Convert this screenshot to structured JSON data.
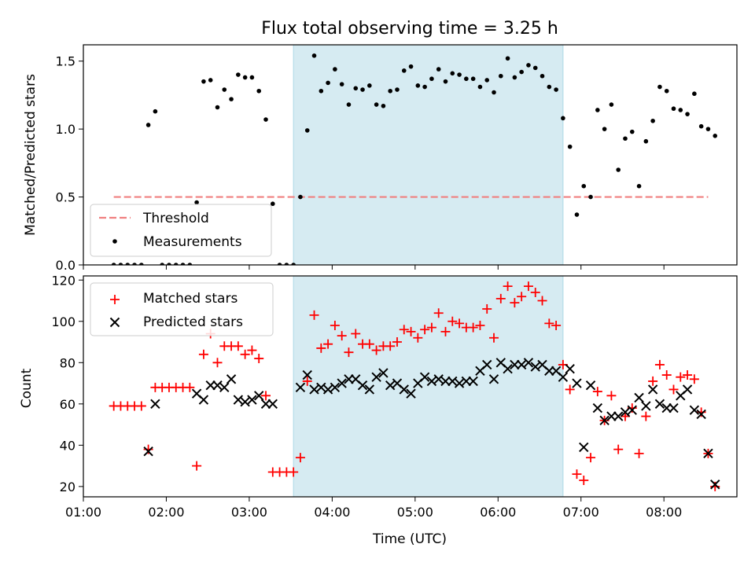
{
  "title": "Flux total observing time = 3.25 h",
  "x_axis": {
    "label": "Time (UTC)",
    "ticks": [
      "01:00",
      "02:00",
      "03:00",
      "04:00",
      "05:00",
      "06:00",
      "07:00",
      "08:00"
    ],
    "range_hours": [
      1.0,
      8.88
    ]
  },
  "colors": {
    "shade": "#add8e6",
    "threshold": "#f08080",
    "measurements": "#000000",
    "matched": "#ff0000",
    "predicted": "#000000"
  },
  "chart_data": [
    {
      "type": "scatter",
      "panel": "top",
      "ylabel": "Matched/Predicted stars",
      "ylim": [
        0,
        1.62
      ],
      "yticks": [
        "0.0",
        "0.5",
        "1.0",
        "1.5"
      ],
      "shaded_span": [
        "03:32",
        "06:47"
      ],
      "legend": {
        "placement": "lower-left",
        "entries": [
          "Threshold",
          "Measurements"
        ]
      },
      "threshold": {
        "name": "Threshold",
        "value": 0.5,
        "x": [
          "01:22",
          "08:32"
        ]
      },
      "series": [
        {
          "name": "Measurements",
          "points": [
            [
              "01:22",
              0.0
            ],
            [
              "01:27",
              0.0
            ],
            [
              "01:32",
              0.0
            ],
            [
              "01:37",
              0.0
            ],
            [
              "01:42",
              0.0
            ],
            [
              "01:47",
              1.03
            ],
            [
              "01:52",
              1.13
            ],
            [
              "01:57",
              0.0
            ],
            [
              "02:02",
              0.0
            ],
            [
              "02:07",
              0.0
            ],
            [
              "02:12",
              0.0
            ],
            [
              "02:17",
              0.0
            ],
            [
              "02:22",
              0.46
            ],
            [
              "02:27",
              1.35
            ],
            [
              "02:32",
              1.36
            ],
            [
              "02:37",
              1.16
            ],
            [
              "02:42",
              1.29
            ],
            [
              "02:47",
              1.22
            ],
            [
              "02:52",
              1.4
            ],
            [
              "02:57",
              1.38
            ],
            [
              "03:02",
              1.38
            ],
            [
              "03:07",
              1.28
            ],
            [
              "03:12",
              1.07
            ],
            [
              "03:17",
              0.45
            ],
            [
              "03:22",
              0.0
            ],
            [
              "03:27",
              0.0
            ],
            [
              "03:32",
              0.0
            ],
            [
              "03:37",
              0.5
            ],
            [
              "03:42",
              0.99
            ],
            [
              "03:47",
              1.54
            ],
            [
              "03:52",
              1.28
            ],
            [
              "03:57",
              1.34
            ],
            [
              "04:02",
              1.44
            ],
            [
              "04:07",
              1.33
            ],
            [
              "04:12",
              1.18
            ],
            [
              "04:17",
              1.3
            ],
            [
              "04:22",
              1.29
            ],
            [
              "04:27",
              1.32
            ],
            [
              "04:32",
              1.18
            ],
            [
              "04:37",
              1.17
            ],
            [
              "04:42",
              1.28
            ],
            [
              "04:47",
              1.29
            ],
            [
              "04:52",
              1.43
            ],
            [
              "04:57",
              1.46
            ],
            [
              "05:02",
              1.32
            ],
            [
              "05:07",
              1.31
            ],
            [
              "05:12",
              1.37
            ],
            [
              "05:17",
              1.44
            ],
            [
              "05:22",
              1.35
            ],
            [
              "05:27",
              1.41
            ],
            [
              "05:32",
              1.4
            ],
            [
              "05:37",
              1.37
            ],
            [
              "05:42",
              1.37
            ],
            [
              "05:47",
              1.31
            ],
            [
              "05:52",
              1.36
            ],
            [
              "05:57",
              1.27
            ],
            [
              "06:02",
              1.39
            ],
            [
              "06:07",
              1.52
            ],
            [
              "06:12",
              1.38
            ],
            [
              "06:17",
              1.42
            ],
            [
              "06:22",
              1.47
            ],
            [
              "06:27",
              1.45
            ],
            [
              "06:32",
              1.39
            ],
            [
              "06:37",
              1.31
            ],
            [
              "06:42",
              1.29
            ],
            [
              "06:47",
              1.08
            ],
            [
              "06:52",
              0.87
            ],
            [
              "06:57",
              0.37
            ],
            [
              "07:02",
              0.58
            ],
            [
              "07:07",
              0.5
            ],
            [
              "07:12",
              1.14
            ],
            [
              "07:17",
              1.0
            ],
            [
              "07:22",
              1.18
            ],
            [
              "07:27",
              0.7
            ],
            [
              "07:32",
              0.93
            ],
            [
              "07:37",
              0.98
            ],
            [
              "07:42",
              0.58
            ],
            [
              "07:47",
              0.91
            ],
            [
              "07:52",
              1.06
            ],
            [
              "07:57",
              1.31
            ],
            [
              "08:02",
              1.28
            ],
            [
              "08:07",
              1.15
            ],
            [
              "08:12",
              1.14
            ],
            [
              "08:17",
              1.11
            ],
            [
              "08:22",
              1.26
            ],
            [
              "08:27",
              1.02
            ],
            [
              "08:32",
              1.0
            ],
            [
              "08:37",
              0.95
            ]
          ]
        }
      ]
    },
    {
      "type": "scatter",
      "panel": "bottom",
      "ylabel": "Count",
      "ylim": [
        15,
        122
      ],
      "yticks": [
        "20",
        "40",
        "60",
        "80",
        "100",
        "120"
      ],
      "shaded_span": [
        "03:32",
        "06:47"
      ],
      "legend": {
        "placement": "upper-left",
        "entries": [
          "Matched stars",
          "Predicted stars"
        ]
      },
      "series": [
        {
          "name": "Matched stars",
          "marker": "+",
          "points": [
            [
              "01:22",
              59
            ],
            [
              "01:27",
              59
            ],
            [
              "01:32",
              59
            ],
            [
              "01:37",
              59
            ],
            [
              "01:42",
              59
            ],
            [
              "01:47",
              38
            ],
            [
              "01:52",
              68
            ],
            [
              "01:57",
              68
            ],
            [
              "02:02",
              68
            ],
            [
              "02:07",
              68
            ],
            [
              "02:12",
              68
            ],
            [
              "02:17",
              68
            ],
            [
              "02:22",
              30
            ],
            [
              "02:27",
              84
            ],
            [
              "02:32",
              94
            ],
            [
              "02:37",
              80
            ],
            [
              "02:42",
              88
            ],
            [
              "02:47",
              88
            ],
            [
              "02:52",
              88
            ],
            [
              "02:57",
              84
            ],
            [
              "03:02",
              86
            ],
            [
              "03:07",
              82
            ],
            [
              "03:12",
              64
            ],
            [
              "03:17",
              27
            ],
            [
              "03:22",
              27
            ],
            [
              "03:27",
              27
            ],
            [
              "03:32",
              27
            ],
            [
              "03:37",
              34
            ],
            [
              "03:42",
              71
            ],
            [
              "03:47",
              103
            ],
            [
              "03:52",
              87
            ],
            [
              "03:57",
              89
            ],
            [
              "04:02",
              98
            ],
            [
              "04:07",
              93
            ],
            [
              "04:12",
              85
            ],
            [
              "04:17",
              94
            ],
            [
              "04:22",
              89
            ],
            [
              "04:27",
              89
            ],
            [
              "04:32",
              86
            ],
            [
              "04:37",
              88
            ],
            [
              "04:42",
              88
            ],
            [
              "04:47",
              90
            ],
            [
              "04:52",
              96
            ],
            [
              "04:57",
              95
            ],
            [
              "05:02",
              92
            ],
            [
              "05:07",
              96
            ],
            [
              "05:12",
              97
            ],
            [
              "05:17",
              104
            ],
            [
              "05:22",
              95
            ],
            [
              "05:27",
              100
            ],
            [
              "05:32",
              99
            ],
            [
              "05:37",
              97
            ],
            [
              "05:42",
              97
            ],
            [
              "05:47",
              98
            ],
            [
              "05:52",
              106
            ],
            [
              "05:57",
              92
            ],
            [
              "06:02",
              111
            ],
            [
              "06:07",
              117
            ],
            [
              "06:12",
              109
            ],
            [
              "06:17",
              112
            ],
            [
              "06:22",
              117
            ],
            [
              "06:27",
              114
            ],
            [
              "06:32",
              110
            ],
            [
              "06:37",
              99
            ],
            [
              "06:42",
              98
            ],
            [
              "06:47",
              79
            ],
            [
              "06:52",
              67
            ],
            [
              "06:57",
              26
            ],
            [
              "07:02",
              23
            ],
            [
              "07:07",
              34
            ],
            [
              "07:12",
              66
            ],
            [
              "07:17",
              52
            ],
            [
              "07:22",
              64
            ],
            [
              "07:27",
              38
            ],
            [
              "07:32",
              54
            ],
            [
              "07:37",
              58
            ],
            [
              "07:42",
              36
            ],
            [
              "07:47",
              54
            ],
            [
              "07:52",
              71
            ],
            [
              "07:57",
              79
            ],
            [
              "08:02",
              74
            ],
            [
              "08:07",
              67
            ],
            [
              "08:12",
              73
            ],
            [
              "08:17",
              74
            ],
            [
              "08:22",
              72
            ],
            [
              "08:27",
              56
            ],
            [
              "08:32",
              36
            ],
            [
              "08:37",
              20
            ]
          ]
        },
        {
          "name": "Predicted stars",
          "marker": "x",
          "points": [
            [
              "01:47",
              37
            ],
            [
              "01:52",
              60
            ],
            [
              "02:22",
              65
            ],
            [
              "02:27",
              62
            ],
            [
              "02:32",
              69
            ],
            [
              "02:37",
              69
            ],
            [
              "02:42",
              68
            ],
            [
              "02:47",
              72
            ],
            [
              "02:52",
              62
            ],
            [
              "02:57",
              61
            ],
            [
              "03:02",
              62
            ],
            [
              "03:07",
              64
            ],
            [
              "03:12",
              60
            ],
            [
              "03:17",
              60
            ],
            [
              "03:37",
              68
            ],
            [
              "03:42",
              74
            ],
            [
              "03:47",
              67
            ],
            [
              "03:52",
              68
            ],
            [
              "03:57",
              67
            ],
            [
              "04:02",
              68
            ],
            [
              "04:07",
              70
            ],
            [
              "04:12",
              72
            ],
            [
              "04:17",
              72
            ],
            [
              "04:22",
              69
            ],
            [
              "04:27",
              67
            ],
            [
              "04:32",
              73
            ],
            [
              "04:37",
              75
            ],
            [
              "04:42",
              69
            ],
            [
              "04:47",
              70
            ],
            [
              "04:52",
              67
            ],
            [
              "04:57",
              65
            ],
            [
              "05:02",
              70
            ],
            [
              "05:07",
              73
            ],
            [
              "05:12",
              71
            ],
            [
              "05:17",
              72
            ],
            [
              "05:22",
              71
            ],
            [
              "05:27",
              71
            ],
            [
              "05:32",
              70
            ],
            [
              "05:37",
              71
            ],
            [
              "05:42",
              71
            ],
            [
              "05:47",
              76
            ],
            [
              "05:52",
              79
            ],
            [
              "05:57",
              72
            ],
            [
              "06:02",
              80
            ],
            [
              "06:07",
              77
            ],
            [
              "06:12",
              79
            ],
            [
              "06:17",
              79
            ],
            [
              "06:22",
              80
            ],
            [
              "06:27",
              78
            ],
            [
              "06:32",
              79
            ],
            [
              "06:37",
              76
            ],
            [
              "06:42",
              76
            ],
            [
              "06:47",
              73
            ],
            [
              "06:52",
              77
            ],
            [
              "06:57",
              70
            ],
            [
              "07:02",
              39
            ],
            [
              "07:07",
              69
            ],
            [
              "07:12",
              58
            ],
            [
              "07:17",
              52
            ],
            [
              "07:22",
              54
            ],
            [
              "07:27",
              54
            ],
            [
              "07:32",
              56
            ],
            [
              "07:37",
              57
            ],
            [
              "07:42",
              63
            ],
            [
              "07:47",
              59
            ],
            [
              "07:52",
              67
            ],
            [
              "07:57",
              60
            ],
            [
              "08:02",
              58
            ],
            [
              "08:07",
              58
            ],
            [
              "08:12",
              64
            ],
            [
              "08:17",
              67
            ],
            [
              "08:22",
              57
            ],
            [
              "08:27",
              55
            ],
            [
              "08:32",
              36
            ],
            [
              "08:37",
              21
            ]
          ]
        }
      ]
    }
  ]
}
